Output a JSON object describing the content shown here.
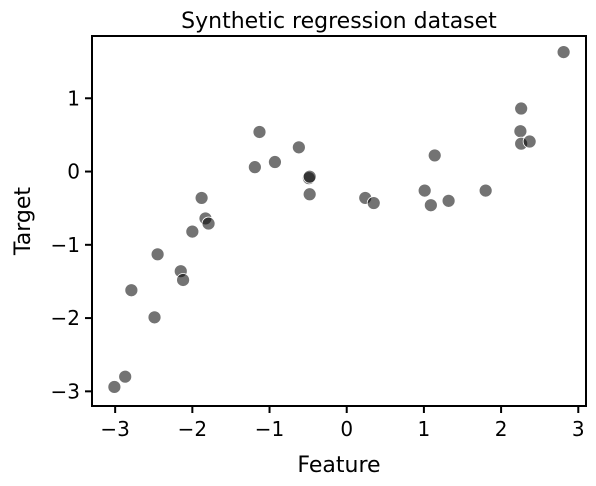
{
  "chart_data": {
    "type": "scatter",
    "title": "Synthetic regression dataset",
    "xlabel": "Feature",
    "ylabel": "Target",
    "xlim": [
      -3.3,
      3.1
    ],
    "ylim": [
      -3.2,
      1.85
    ],
    "xticks": [
      -3,
      -2,
      -1,
      0,
      1,
      2,
      3
    ],
    "xtick_labels": [
      "−3",
      "−2",
      "−1",
      "0",
      "1",
      "2",
      "3"
    ],
    "yticks": [
      -3,
      -2,
      -1,
      0,
      1
    ],
    "ytick_labels": [
      "−3",
      "−2",
      "−1",
      "0",
      "1"
    ],
    "grid": false,
    "marker_color": "#000000",
    "marker_alpha": 0.55,
    "x": [
      -3.01,
      -2.87,
      -2.79,
      -2.49,
      -2.45,
      -2.15,
      -2.12,
      -2.0,
      -1.88,
      -1.83,
      -1.79,
      -1.19,
      -1.13,
      -0.93,
      -0.62,
      -0.49,
      -0.48,
      -0.48,
      0.24,
      0.35,
      1.01,
      1.09,
      1.14,
      1.32,
      1.8,
      2.25,
      2.26,
      2.26,
      2.37,
      2.81
    ],
    "y": [
      -2.94,
      -2.8,
      -1.62,
      -1.99,
      -1.13,
      -1.36,
      -1.48,
      -0.82,
      -0.36,
      -0.64,
      -0.71,
      0.06,
      0.54,
      0.13,
      0.33,
      -0.09,
      -0.07,
      -0.31,
      -0.36,
      -0.43,
      -0.26,
      -0.46,
      0.22,
      -0.4,
      -0.26,
      0.55,
      0.86,
      0.38,
      0.41,
      1.63
    ]
  }
}
